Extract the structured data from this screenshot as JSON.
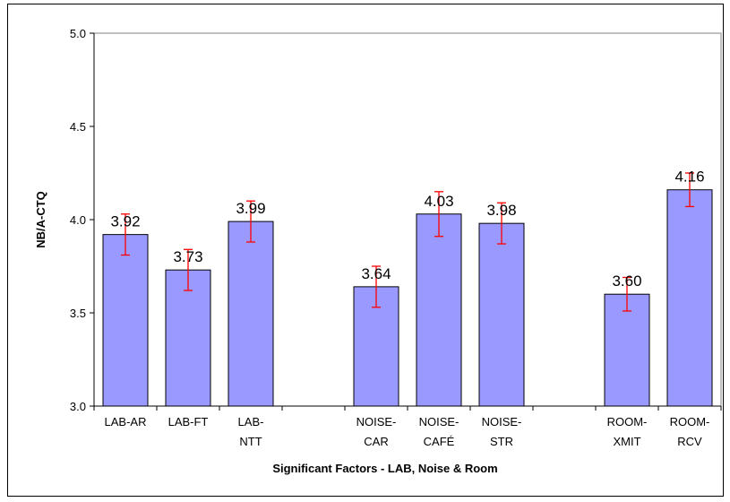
{
  "chart_data": {
    "type": "bar",
    "title": "",
    "xlabel": "Significant Factors - LAB, Noise & Room",
    "ylabel": "NB/A-CTQ",
    "ylim": [
      3.0,
      5.0
    ],
    "yticks": [
      "3.0",
      "3.5",
      "4.0",
      "4.5",
      "5.0"
    ],
    "categories": [
      [
        "LAB-AR"
      ],
      [
        "LAB-FT"
      ],
      [
        "LAB-",
        "NTT"
      ],
      [],
      [
        "NOISE-",
        "CAR"
      ],
      [
        "NOISE-",
        "CAFÉ"
      ],
      [
        "NOISE-",
        "STR"
      ],
      [],
      [
        "ROOM-",
        "XMIT"
      ],
      [
        "ROOM-",
        "RCV"
      ]
    ],
    "values": [
      3.92,
      3.73,
      3.99,
      null,
      3.64,
      4.03,
      3.98,
      null,
      3.6,
      4.16
    ],
    "data_labels": [
      "3.92",
      "3.73",
      "3.99",
      "",
      "3.64",
      "4.03",
      "3.98",
      "",
      "3.60",
      "4.16"
    ],
    "error": [
      0.11,
      0.11,
      0.11,
      null,
      0.11,
      0.12,
      0.11,
      null,
      0.09,
      0.09
    ],
    "grid": false,
    "legend": "none",
    "colors": {
      "bar_fill": "#9999ff",
      "bar_stroke": "#000000",
      "error_bar": "#ff0000"
    }
  }
}
